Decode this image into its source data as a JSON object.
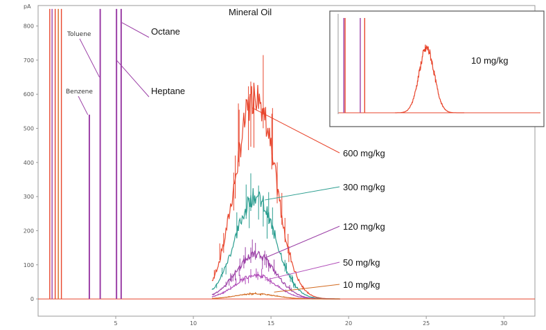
{
  "chart_data": {
    "type": "line",
    "title": "Mineral Oil",
    "xlabel": "",
    "ylabel": "pA",
    "xlim": [
      0,
      32
    ],
    "ylim": [
      -10,
      860
    ],
    "x_ticks": [
      "5",
      "10",
      "15",
      "20",
      "25",
      "30"
    ],
    "y_ticks": [
      "0",
      "100",
      "200",
      "300",
      "400",
      "500",
      "600",
      "700",
      "800"
    ],
    "y_unit_label": "pA",
    "grid": false,
    "solvent_peaks": [
      {
        "name": "Benzene",
        "x": 3.3,
        "height": 540
      },
      {
        "name": "Toluene",
        "x": 4.0,
        "height": 850
      },
      {
        "name": "Heptane",
        "x": 5.05,
        "height": 850
      },
      {
        "name": "Octane",
        "x": 5.35,
        "height": 850
      }
    ],
    "series": [
      {
        "name": "600 mg/kg",
        "color": "#e8452c",
        "peak_x": 14.0,
        "peak_height": 600
      },
      {
        "name": "300 mg/kg",
        "color": "#2a9d8f",
        "peak_x": 14.0,
        "peak_height": 300
      },
      {
        "name": "120 mg/kg",
        "color": "#9b3fa6",
        "peak_x": 14.0,
        "peak_height": 130
      },
      {
        "name": "50 mg/kg",
        "color": "#b04bb8",
        "peak_x": 14.0,
        "peak_height": 70
      },
      {
        "name": "10 mg/kg",
        "color": "#d2691e",
        "peak_x": 14.0,
        "peak_height": 15
      }
    ],
    "inset": {
      "label": "10 mg/kg",
      "color": "#e8452c",
      "peak_x": 14.0
    }
  },
  "colors": {
    "background": "#ffffff",
    "axis": "#9a9a9a",
    "inset_border": "#555555"
  }
}
